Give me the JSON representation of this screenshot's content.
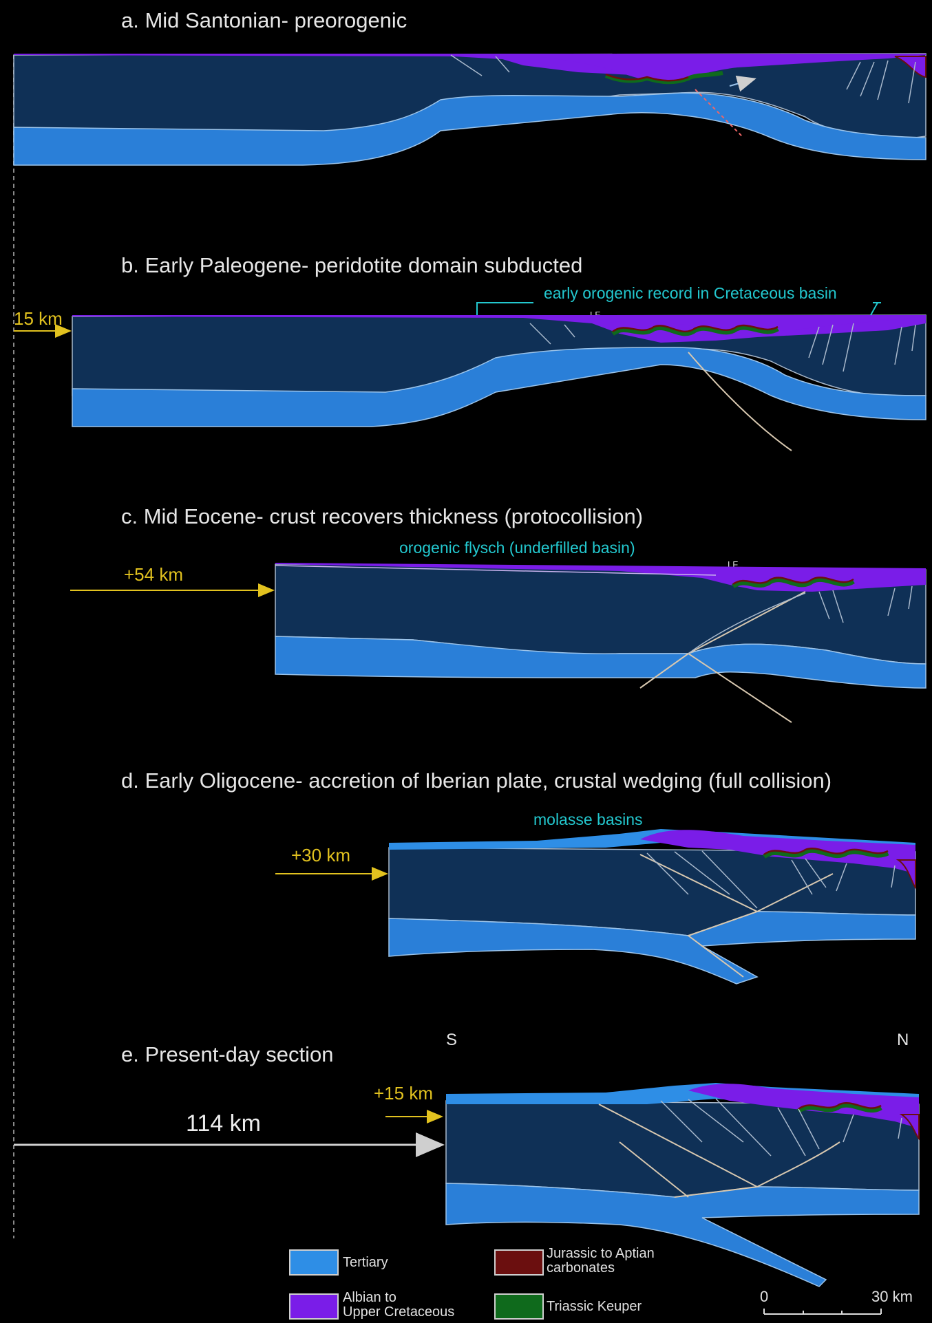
{
  "panels": [
    {
      "id": "a",
      "title": "a. Mid Santonian- preorogenic"
    },
    {
      "id": "b",
      "title": "b. Early Paleogene- peridotite domain subducted",
      "annotation": "early orogenic record in Cretaceous basin",
      "shift": "15 km",
      "fault_label": "LF"
    },
    {
      "id": "c",
      "title": "c. Mid Eocene- crust recovers thickness (protocollision)",
      "annotation": "orogenic flysch (underfilled basin)",
      "shift": "+54 km",
      "fault_label": "LF"
    },
    {
      "id": "d",
      "title": "d. Early Oligocene- accretion of Iberian plate, crustal wedging (full collision)",
      "annotation": "molasse basins",
      "shift": "+30 km"
    },
    {
      "id": "e",
      "title": "e. Present-day section",
      "shift": "+15 km",
      "south": "S",
      "north": "N"
    }
  ],
  "total_shortening": "114 km",
  "legend": [
    {
      "label": "Tertiary",
      "color": "#2e8ee6"
    },
    {
      "label": "Albian to\nUpper Cretaceous",
      "color": "#7a1de8"
    },
    {
      "label": "Jurassic to Aptian\ncarbonates",
      "color": "#6b0f0f"
    },
    {
      "label": "Triassic Keuper",
      "color": "#0f6a1c"
    }
  ],
  "scale": {
    "start": "0",
    "end": "30 km"
  },
  "colors": {
    "crust": "#0f3056",
    "mantle": "#2a7fd8",
    "tertiary": "#2e8ee6",
    "albian": "#7a1de8",
    "jurassic": "#6b0f0f",
    "keuper": "#0f6a1c",
    "shift_arrow": "#e2c21f",
    "annotation": "#23c8cf"
  }
}
